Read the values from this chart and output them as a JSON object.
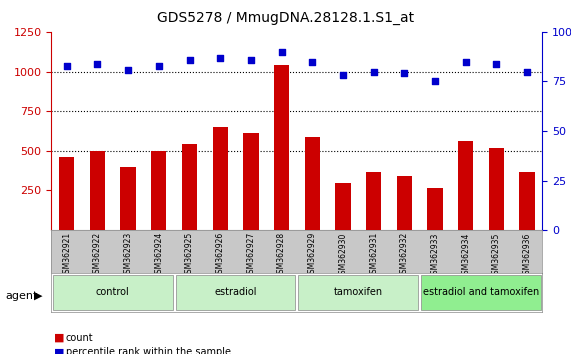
{
  "title": "GDS5278 / MmugDNA.28128.1.S1_at",
  "samples": [
    "GSM362921",
    "GSM362922",
    "GSM362923",
    "GSM362924",
    "GSM362925",
    "GSM362926",
    "GSM362927",
    "GSM362928",
    "GSM362929",
    "GSM362930",
    "GSM362931",
    "GSM362932",
    "GSM362933",
    "GSM362934",
    "GSM362935",
    "GSM362936"
  ],
  "counts": [
    460,
    500,
    400,
    500,
    545,
    650,
    610,
    1040,
    590,
    295,
    365,
    340,
    265,
    560,
    515,
    365
  ],
  "percentiles": [
    83,
    84,
    81,
    83,
    86,
    87,
    86,
    90,
    85,
    78,
    80,
    79,
    75,
    85,
    84,
    80
  ],
  "groups": [
    {
      "label": "control",
      "start": 0,
      "end": 4,
      "color": "#90EE90"
    },
    {
      "label": "estradiol",
      "start": 4,
      "end": 8,
      "color": "#90EE90"
    },
    {
      "label": "tamoxifen",
      "start": 8,
      "end": 12,
      "color": "#90EE90"
    },
    {
      "label": "estradiol and tamoxifen",
      "start": 12,
      "end": 16,
      "color": "#90EE90"
    }
  ],
  "bar_color": "#CC0000",
  "dot_color": "#0000CC",
  "ylim_left": [
    0,
    1250
  ],
  "ylim_right": [
    0,
    100
  ],
  "yticks_left": [
    250,
    500,
    750,
    1000,
    1250
  ],
  "yticks_right": [
    0,
    25,
    50,
    75,
    100
  ],
  "grid_values": [
    500,
    750,
    1000
  ],
  "background_color": "#ffffff",
  "plot_bg": "#ffffff",
  "tick_area_bg": "#d0d0d0",
  "agent_label": "agent",
  "legend_count_color": "#CC0000",
  "legend_dot_color": "#0000CC",
  "legend_count_label": "count",
  "legend_percentile_label": "percentile rank within the sample"
}
